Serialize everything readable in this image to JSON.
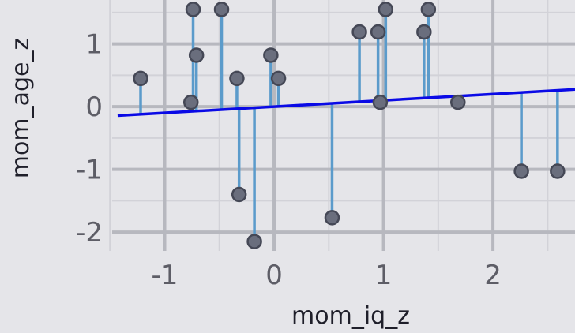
{
  "chart_data": {
    "type": "scatter",
    "title": "",
    "xlabel": "mom_iq_z",
    "ylabel": "mom_age_z",
    "xlim": [
      -1.48,
      2.75
    ],
    "ylim": [
      -2.3,
      1.7
    ],
    "x_ticks": [
      -1,
      0,
      1,
      2
    ],
    "x_tick_labels": [
      "-1",
      "0",
      "1",
      "2"
    ],
    "y_ticks": [
      -2,
      -1,
      0,
      1
    ],
    "y_tick_labels": [
      "-2",
      "-1",
      "0",
      "1"
    ],
    "grid": true,
    "regression_line": {
      "intercept": 0.0,
      "slope": 0.1
    },
    "points": [
      {
        "x": -1.22,
        "y": 0.45
      },
      {
        "x": -0.76,
        "y": 0.07
      },
      {
        "x": -0.74,
        "y": 1.55
      },
      {
        "x": -0.71,
        "y": 0.82
      },
      {
        "x": -0.48,
        "y": 1.55
      },
      {
        "x": -0.34,
        "y": 0.45
      },
      {
        "x": -0.32,
        "y": -1.4
      },
      {
        "x": -0.18,
        "y": -2.15
      },
      {
        "x": -0.03,
        "y": 0.82
      },
      {
        "x": 0.04,
        "y": 0.45
      },
      {
        "x": 0.53,
        "y": -1.77
      },
      {
        "x": 0.78,
        "y": 1.19
      },
      {
        "x": 0.95,
        "y": 1.19
      },
      {
        "x": 0.97,
        "y": 0.07
      },
      {
        "x": 1.02,
        "y": 1.55
      },
      {
        "x": 1.37,
        "y": 1.19
      },
      {
        "x": 1.41,
        "y": 1.55
      },
      {
        "x": 1.68,
        "y": 0.07
      },
      {
        "x": 2.26,
        "y": -1.03
      },
      {
        "x": 2.59,
        "y": -1.03
      }
    ],
    "colors": {
      "background": "#e5e5e9",
      "grid_major": "#b7b8bf",
      "grid_minor": "#d2d2d8",
      "point_fill": "#6a6e7d",
      "point_stroke": "#454856",
      "residual": "#5b9bcb",
      "regression": "#0a0ae6"
    }
  }
}
